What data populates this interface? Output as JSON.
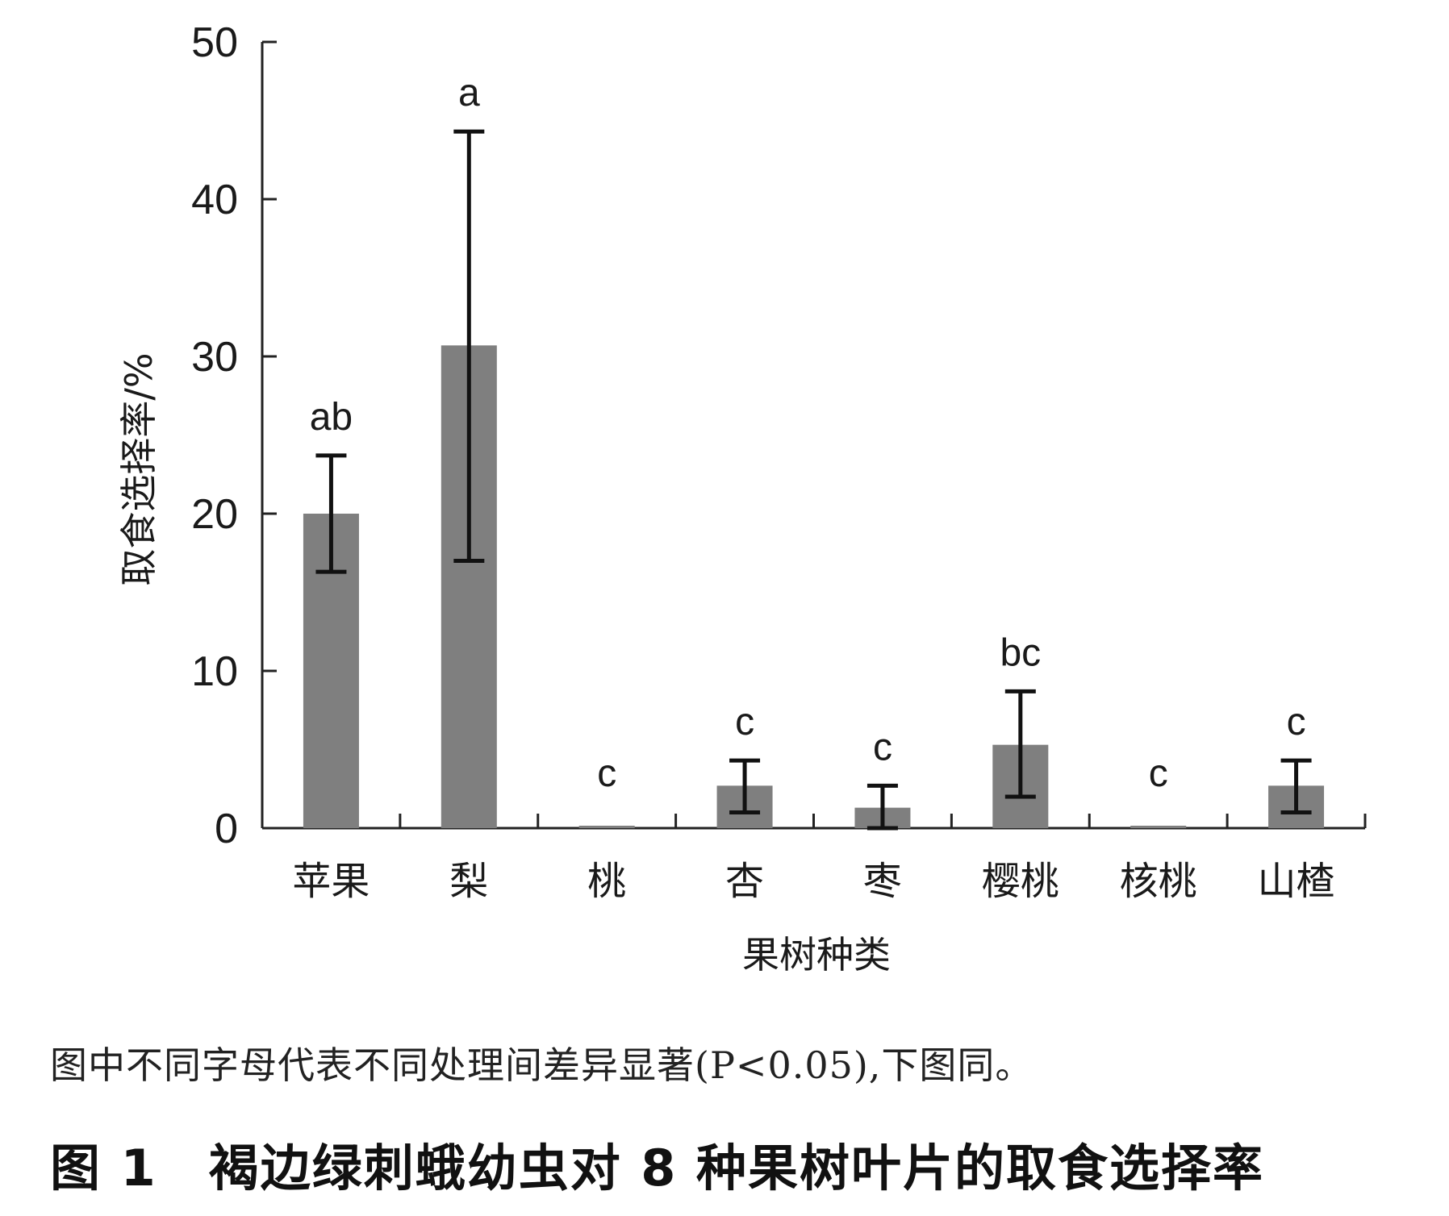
{
  "chart_data": {
    "type": "bar",
    "categories": [
      "苹果",
      "梨",
      "桃",
      "杏",
      "枣",
      "樱桃",
      "核桃",
      "山楂"
    ],
    "values": [
      20.0,
      30.7,
      0.0,
      2.7,
      1.3,
      5.3,
      0.0,
      2.7
    ],
    "error_low": [
      16.3,
      17.0,
      0.0,
      1.0,
      0.0,
      2.0,
      0.0,
      1.0
    ],
    "error_high": [
      23.7,
      44.3,
      0.0,
      4.3,
      2.7,
      8.7,
      0.0,
      4.3
    ],
    "significance": [
      "ab",
      "a",
      "c",
      "c",
      "c",
      "bc",
      "c",
      "c"
    ],
    "xlabel": "果树种类",
    "ylabel": "取食选择率/%",
    "ylim": [
      0,
      50
    ],
    "yticks": [
      "0",
      "10",
      "20",
      "30",
      "40",
      "50"
    ],
    "grid": false,
    "bar_color": "#7f7f7f",
    "errorbar_color": "#111111"
  },
  "note": "图中不同字母代表不同处理间差异显著(P<0.05),下图同。",
  "caption": "图 1　褐边绿刺蛾幼虫对 8 种果树叶片的取食选择率"
}
